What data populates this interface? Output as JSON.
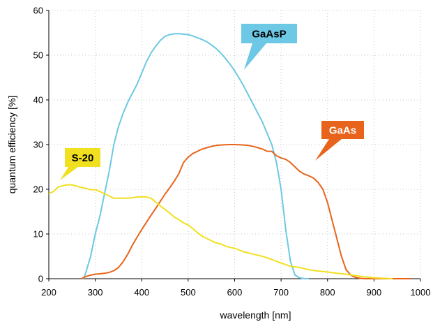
{
  "chart_data": {
    "type": "line",
    "title": "",
    "xlabel": "wavelength [nm]",
    "ylabel": "quantum efficiency [%]",
    "xlim": [
      200,
      1000
    ],
    "ylim": [
      0,
      60
    ],
    "x_ticks": [
      200,
      300,
      400,
      500,
      600,
      700,
      800,
      900,
      1000
    ],
    "y_ticks": [
      0,
      10,
      20,
      30,
      40,
      50,
      60
    ],
    "grid": "dotted",
    "series": [
      {
        "name": "GaAsP",
        "color": "#6cc8e4",
        "label_color": "#6cc8e4",
        "label_text_color": "#000000",
        "x": [
          275,
          280,
          290,
          300,
          310,
          320,
          330,
          340,
          350,
          360,
          370,
          380,
          390,
          400,
          410,
          420,
          430,
          440,
          450,
          460,
          470,
          480,
          490,
          500,
          510,
          520,
          530,
          540,
          550,
          560,
          570,
          580,
          590,
          600,
          610,
          620,
          630,
          640,
          650,
          660,
          670,
          680,
          690,
          700,
          710,
          720,
          730,
          740,
          750,
          760
        ],
        "values": [
          0,
          1.5,
          5,
          10,
          14,
          19,
          24,
          30,
          34,
          37,
          39.5,
          41.5,
          43.5,
          46,
          48.5,
          50.5,
          52,
          53.3,
          54.2,
          54.6,
          54.8,
          54.8,
          54.7,
          54.6,
          54.3,
          53.9,
          53.5,
          53,
          52.3,
          51.5,
          50.5,
          49.3,
          48,
          46.5,
          44.8,
          43,
          41,
          39,
          37,
          35,
          32.5,
          30,
          26,
          20,
          11,
          4,
          0.8,
          0.2,
          0,
          0
        ]
      },
      {
        "name": "GaAs",
        "color": "#e8641c",
        "label_color": "#e8641c",
        "label_text_color": "#ffffff",
        "x": [
          270,
          280,
          290,
          300,
          310,
          320,
          330,
          340,
          350,
          360,
          370,
          380,
          390,
          400,
          410,
          420,
          430,
          440,
          450,
          460,
          470,
          480,
          490,
          500,
          510,
          520,
          530,
          540,
          550,
          560,
          570,
          580,
          590,
          600,
          610,
          620,
          630,
          640,
          650,
          660,
          670,
          680,
          690,
          700,
          710,
          720,
          730,
          740,
          750,
          760,
          770,
          780,
          790,
          800,
          810,
          820,
          830,
          840,
          850,
          860,
          870,
          880,
          890,
          900,
          910,
          920,
          930,
          940,
          950,
          960,
          970,
          980
        ],
        "values": [
          0,
          0.5,
          0.8,
          1.0,
          1.1,
          1.2,
          1.4,
          1.8,
          2.5,
          3.8,
          5.5,
          7.5,
          9.3,
          11,
          12.6,
          14.2,
          15.7,
          17.3,
          18.9,
          20.3,
          21.8,
          23.5,
          26,
          27.2,
          28,
          28.5,
          29,
          29.3,
          29.6,
          29.8,
          29.9,
          29.95,
          30,
          30,
          29.95,
          29.9,
          29.8,
          29.6,
          29.3,
          29,
          28.5,
          28.5,
          27.5,
          27,
          26.7,
          26,
          25,
          24,
          23.4,
          23,
          22.5,
          21.5,
          20,
          17,
          13,
          9,
          5,
          2,
          0.8,
          0.3,
          0.1,
          0,
          0,
          0,
          0,
          0,
          0,
          0,
          0,
          0,
          0,
          0
        ],
        "_x_note": ""
      },
      {
        "name": "S-20",
        "color": "#f0e020",
        "label_color": "#f0e020",
        "label_text_color": "#000000",
        "x": [
          200,
          210,
          220,
          230,
          240,
          250,
          260,
          270,
          280,
          290,
          300,
          310,
          320,
          330,
          340,
          350,
          360,
          370,
          380,
          390,
          400,
          410,
          420,
          430,
          440,
          450,
          460,
          470,
          480,
          490,
          500,
          510,
          520,
          530,
          540,
          550,
          560,
          570,
          580,
          590,
          600,
          620,
          640,
          660,
          680,
          700,
          720,
          740,
          760,
          780,
          800,
          820,
          840,
          860,
          880,
          900,
          920,
          940
        ],
        "values": [
          19,
          19.5,
          20.5,
          20.8,
          21,
          21,
          20.7,
          20.4,
          20.2,
          19.9,
          19.9,
          19.5,
          19,
          18.5,
          18,
          18,
          18,
          18,
          18.1,
          18.3,
          18.3,
          18.3,
          18,
          17.2,
          16.3,
          15.5,
          14.7,
          13.8,
          13.2,
          12.5,
          12,
          11.2,
          10.3,
          9.5,
          9,
          8.5,
          8,
          7.8,
          7.3,
          7,
          6.8,
          6,
          5.5,
          5,
          4.3,
          3.5,
          2.8,
          2.5,
          2,
          1.7,
          1.5,
          1.2,
          1,
          0.7,
          0.4,
          0.2,
          0.1,
          0
        ]
      }
    ],
    "annotations": [
      {
        "series": "GaAsP",
        "text": "GaAsP"
      },
      {
        "series": "GaAs",
        "text": "GaAs"
      },
      {
        "series": "S-20",
        "text": "S-20"
      }
    ]
  }
}
